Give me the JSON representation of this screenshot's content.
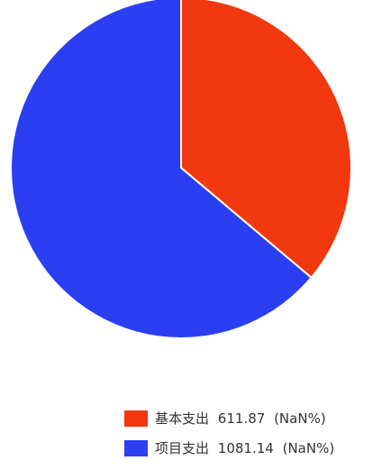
{
  "chart_data": {
    "type": "pie",
    "slices": [
      {
        "label": "基本支出",
        "value": 611.87,
        "percent_text": "(NaN%)",
        "color": "#f2380f"
      },
      {
        "label": "项目支出",
        "value": 1081.14,
        "percent_text": "(NaN%)",
        "color": "#2b3ff2"
      }
    ],
    "start_angle": "12 o'clock",
    "direction": "clockwise",
    "legend_position": "bottom-right",
    "slice_border_color": "#ffffff"
  }
}
